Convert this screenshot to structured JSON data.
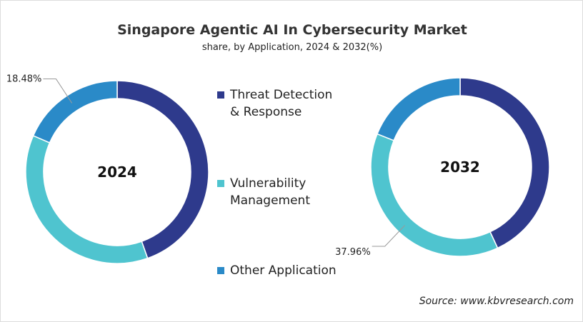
{
  "title": "Singapore Agentic AI In Cybersecurity Market",
  "subtitle": "share, by Application, 2024 & 2032(%)",
  "legend": [
    {
      "name": "Threat Detection & Response",
      "color": "#2e3a8c"
    },
    {
      "name": "Vulnerability Management",
      "color": "#4fc4cf"
    },
    {
      "name": "Other Application",
      "color": "#2a8ac8"
    }
  ],
  "source": "Source: www.kbvresearch.com",
  "chart_data": [
    {
      "type": "donut",
      "center_label": "2024",
      "values": [
        44.6,
        36.92,
        18.48
      ],
      "value_labels": [
        null,
        null,
        "18.48%"
      ]
    },
    {
      "type": "donut",
      "center_label": "2032",
      "values": [
        43.1,
        37.96,
        18.94
      ],
      "value_labels": [
        null,
        "37.96%",
        null
      ]
    }
  ]
}
